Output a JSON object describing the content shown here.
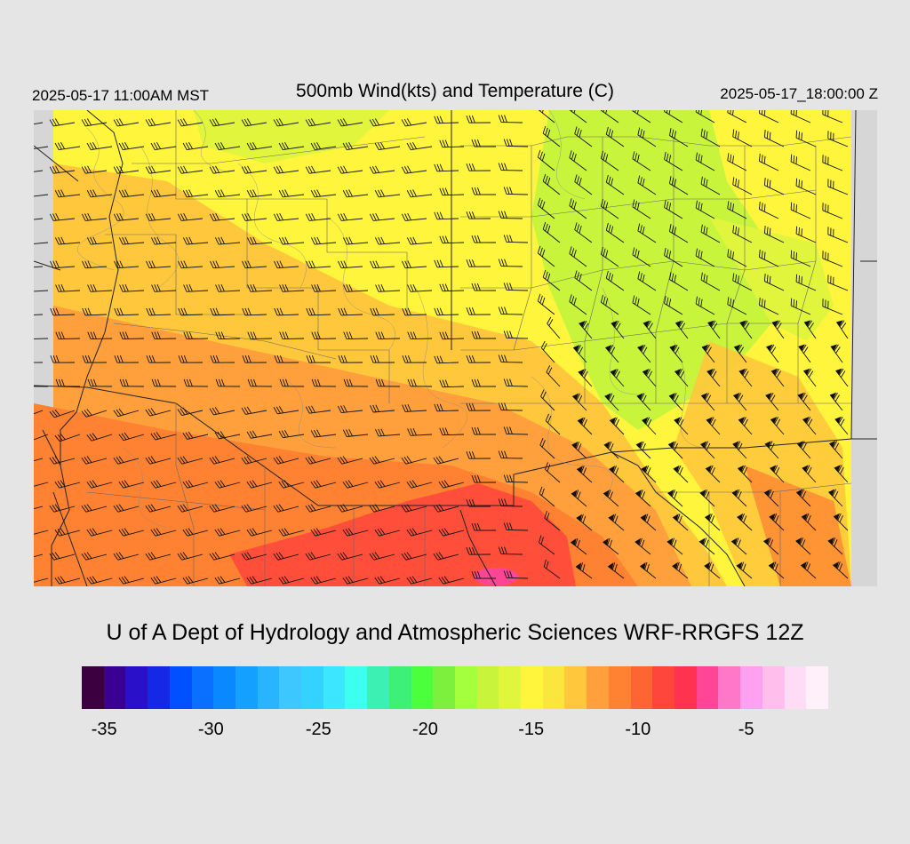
{
  "header": {
    "left_time": "2025-05-17 11:00AM MST",
    "title": "500mb Wind(kts) and Temperature (C)",
    "right_time": "2025-05-17_18:00:00 Z"
  },
  "credit": "U of A Dept of Hydrology and Atmospheric Sciences WRF-RRGFS 12Z",
  "colorbar": {
    "colors": [
      "#3c0040",
      "#3a0094",
      "#2a10c8",
      "#1428e6",
      "#0050ff",
      "#0a70ff",
      "#0a88ff",
      "#14a0ff",
      "#28b4ff",
      "#3cc8ff",
      "#34d2ff",
      "#3ce6ff",
      "#3cfff0",
      "#3cf0b4",
      "#3cf078",
      "#4cff3c",
      "#7cf03c",
      "#a4ff3c",
      "#c8f53c",
      "#e1f53c",
      "#fff53c",
      "#fae63c",
      "#ffc83c",
      "#ffa03c",
      "#ff8232",
      "#ff6432",
      "#ff463c",
      "#ff3250",
      "#ff4696",
      "#ff78c8",
      "#ffa0f0",
      "#ffbeeb",
      "#ffdcf5",
      "#fff0fa"
    ],
    "ticks": [
      {
        "label": "-35",
        "pos": 0.03
      },
      {
        "label": "-30",
        "pos": 0.173
      },
      {
        "label": "-25",
        "pos": 0.317
      },
      {
        "label": "-20",
        "pos": 0.46
      },
      {
        "label": "-15",
        "pos": 0.602
      },
      {
        "label": "-10",
        "pos": 0.745
      },
      {
        "label": "-5",
        "pos": 0.89
      }
    ]
  },
  "map": {
    "missing_color": "#d6d6d6",
    "region_colors": {
      "green": "#c8f53c",
      "yellow_green": "#e1f53c",
      "yellow": "#fff53c",
      "light_orange": "#ffc83c",
      "orange": "#ffa03c",
      "dark_orange": "#ff8232",
      "red": "#ff463c",
      "hot_pink": "#ff4696"
    }
  }
}
